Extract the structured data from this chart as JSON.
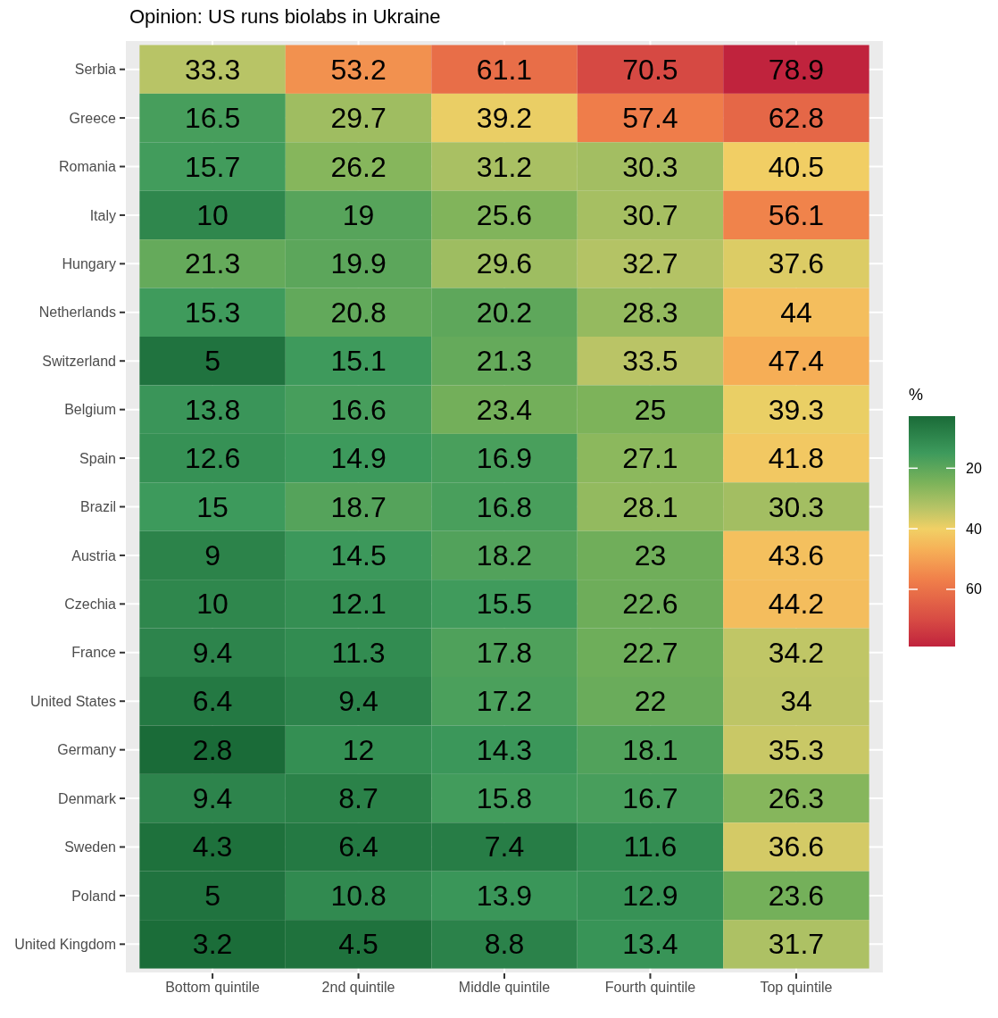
{
  "chart_data": {
    "type": "heatmap",
    "title": "Opinion: US runs biolabs in Ukraine",
    "clabel": "%",
    "grid": true,
    "data_labels": true,
    "categories": [
      "Bottom quintile",
      "2nd quintile",
      "Middle quintile",
      "Fourth quintile",
      "Top quintile"
    ],
    "y_categories": [
      "Serbia",
      "Greece",
      "Romania",
      "Italy",
      "Hungary",
      "Netherlands",
      "Switzerland",
      "Belgium",
      "Spain",
      "Brazil",
      "Austria",
      "Czechia",
      "France",
      "United States",
      "Germany",
      "Denmark",
      "Sweden",
      "Poland",
      "United Kingdom"
    ],
    "cells": [
      [
        33.3,
        53.2,
        61.1,
        70.5,
        78.9
      ],
      [
        16.5,
        29.7,
        39.2,
        57.4,
        62.8
      ],
      [
        15.7,
        26.2,
        31.2,
        30.3,
        40.5
      ],
      [
        10,
        19,
        25.6,
        30.7,
        56.1
      ],
      [
        21.3,
        19.9,
        29.6,
        32.7,
        37.6
      ],
      [
        15.3,
        20.8,
        20.2,
        28.3,
        44
      ],
      [
        5,
        15.1,
        21.3,
        33.5,
        47.4
      ],
      [
        13.8,
        16.6,
        23.4,
        25,
        39.3
      ],
      [
        12.6,
        14.9,
        16.9,
        27.1,
        41.8
      ],
      [
        15,
        18.7,
        16.8,
        28.1,
        30.3
      ],
      [
        9,
        14.5,
        18.2,
        23,
        43.6
      ],
      [
        10,
        12.1,
        15.5,
        22.6,
        44.2
      ],
      [
        9.4,
        11.3,
        17.8,
        22.7,
        34.2
      ],
      [
        6.4,
        9.4,
        17.2,
        22,
        34
      ],
      [
        2.8,
        12,
        14.3,
        18.1,
        35.3
      ],
      [
        9.4,
        8.7,
        15.8,
        16.7,
        26.3
      ],
      [
        4.3,
        6.4,
        7.4,
        11.6,
        36.6
      ],
      [
        5,
        10.8,
        13.9,
        12.9,
        23.6
      ],
      [
        3.2,
        4.5,
        8.8,
        13.4,
        31.7
      ]
    ],
    "clim": [
      2.8,
      78.9
    ],
    "cticks": [
      20,
      40,
      60
    ]
  }
}
